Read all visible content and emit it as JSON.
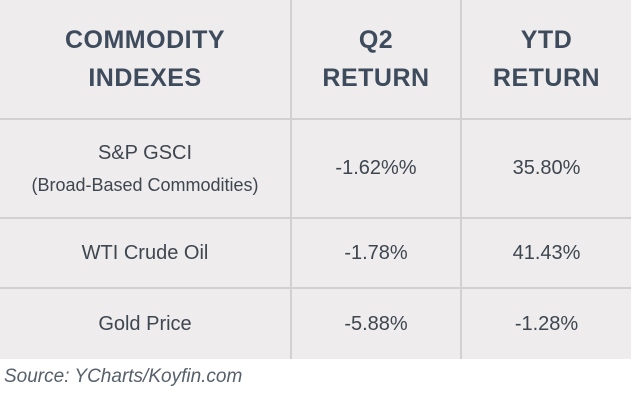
{
  "table": {
    "headers": {
      "commodity_line1": "COMMODITY",
      "commodity_line2": "INDEXES",
      "q2_line1": "Q2",
      "q2_line2": "RETURN",
      "ytd_line1": "YTD",
      "ytd_line2": "RETURN"
    },
    "rows": [
      {
        "name": "S&P GSCI",
        "subname": "(Broad-Based Commodities)",
        "q2_return": "-1.62%%",
        "ytd_return": "35.80%"
      },
      {
        "name": "WTI Crude Oil",
        "q2_return": "-1.78%",
        "ytd_return": "41.43%"
      },
      {
        "name": "Gold Price",
        "q2_return": "-5.88%",
        "ytd_return": "-1.28%"
      }
    ]
  },
  "source": "Source: YCharts/Koyfin.com"
}
